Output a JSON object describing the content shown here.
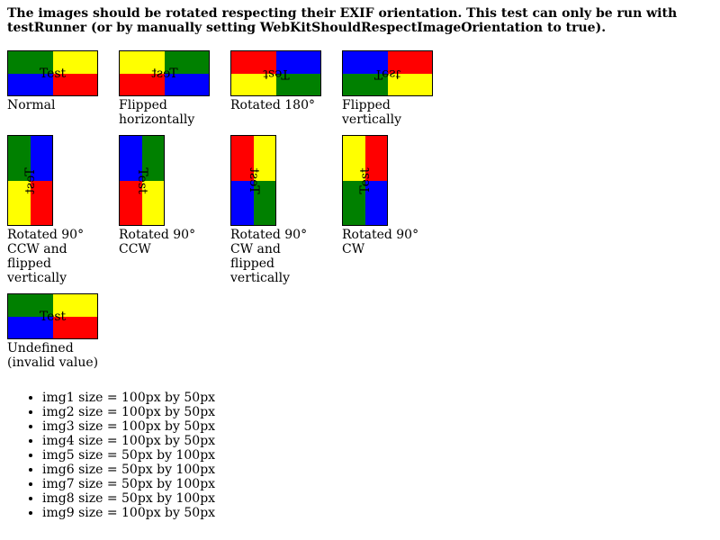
{
  "intro": "The images should be rotated respecting their EXIF orientation. This test can only be run with testRunner (or by manually setting WebKitShouldRespectImageOrientation to true).",
  "image_text": "Test",
  "colors": {
    "green": "#008000",
    "yellow": "#ffff00",
    "blue": "#0000ff",
    "red": "#ff0000"
  },
  "figures": [
    {
      "label": "Normal",
      "quadrants": [
        "green",
        "yellow",
        "blue",
        "red"
      ],
      "text_transform": "none"
    },
    {
      "label": "Flipped horizontally",
      "quadrants": [
        "yellow",
        "green",
        "red",
        "blue"
      ],
      "text_transform": "scaleX(-1)"
    },
    {
      "label": "Rotated 180°",
      "quadrants": [
        "red",
        "blue",
        "yellow",
        "green"
      ],
      "text_transform": "rotate(180deg)"
    },
    {
      "label": "Flipped vertically",
      "quadrants": [
        "blue",
        "red",
        "green",
        "yellow"
      ],
      "text_transform": "scaleY(-1)"
    },
    {
      "label": "Rotated 90° CCW and flipped vertically",
      "quadrants": [
        "green",
        "blue",
        "yellow",
        "red"
      ],
      "text_transform": "rotate(-90deg) scaleX(-1)"
    },
    {
      "label": "Rotated 90° CCW",
      "quadrants": [
        "blue",
        "green",
        "red",
        "yellow"
      ],
      "text_transform": "rotate(90deg)"
    },
    {
      "label": "Rotated 90° CW and flipped vertically",
      "quadrants": [
        "red",
        "yellow",
        "blue",
        "green"
      ],
      "text_transform": "rotate(90deg) scaleX(-1)"
    },
    {
      "label": "Rotated 90° CW",
      "quadrants": [
        "yellow",
        "red",
        "green",
        "blue"
      ],
      "text_transform": "rotate(-90deg)"
    },
    {
      "label": "Undefined (invalid value)",
      "quadrants": [
        "green",
        "yellow",
        "blue",
        "red"
      ],
      "text_transform": "none"
    }
  ],
  "sizes": [
    "img1 size = 100px by 50px",
    "img2 size = 100px by 50px",
    "img3 size = 100px by 50px",
    "img4 size = 100px by 50px",
    "img5 size = 50px by 100px",
    "img6 size = 50px by 100px",
    "img7 size = 50px by 100px",
    "img8 size = 50px by 100px",
    "img9 size = 100px by 50px"
  ]
}
